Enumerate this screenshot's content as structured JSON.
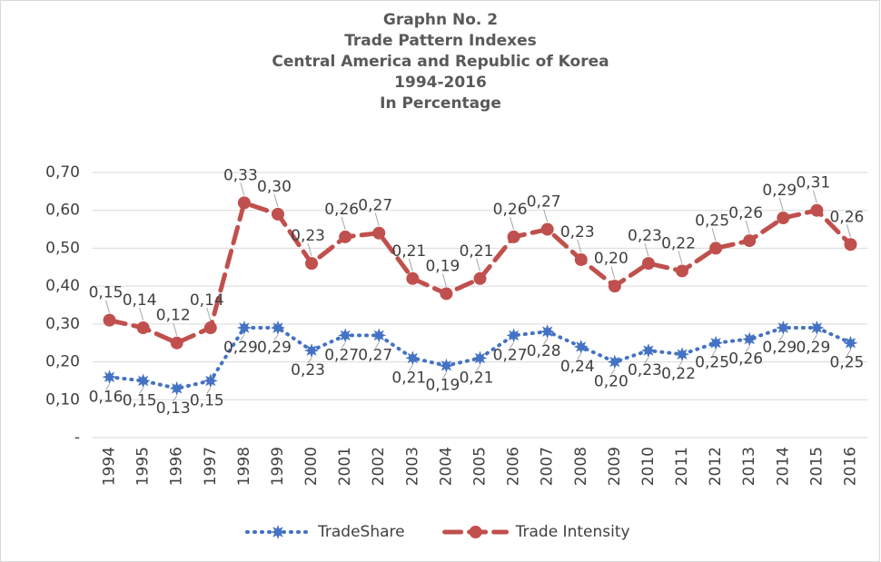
{
  "chart_data": {
    "type": "line",
    "stacked": true,
    "title": [
      "Graphn No. 2",
      "Trade Pattern Indexes",
      "Central America and Republic of Korea",
      "1994-2016",
      "In Percentage"
    ],
    "categories": [
      "1994",
      "1995",
      "1996",
      "1997",
      "1998",
      "1999",
      "2000",
      "2001",
      "2002",
      "2003",
      "2004",
      "2005",
      "2006",
      "2007",
      "2008",
      "2009",
      "2010",
      "2011",
      "2012",
      "2013",
      "2014",
      "2015",
      "2016"
    ],
    "series": [
      {
        "name": "TradeShare",
        "color": "#4472c4",
        "dash": "dot",
        "marker": "star",
        "values": [
          0.16,
          0.15,
          0.13,
          0.15,
          0.29,
          0.29,
          0.23,
          0.27,
          0.27,
          0.21,
          0.19,
          0.21,
          0.27,
          0.28,
          0.24,
          0.2,
          0.23,
          0.22,
          0.25,
          0.26,
          0.29,
          0.29,
          0.25
        ],
        "value_labels": [
          "0,16",
          "0,15",
          "0,13",
          "0,15",
          "0,29",
          "0,29",
          "0,23",
          "0,27",
          "0,27",
          "0,21",
          "0,19",
          "0,21",
          "0,27",
          "0,28",
          "0,24",
          "0,20",
          "0,23",
          "0,22",
          "0,25",
          "0,26",
          "0,29",
          "0,29",
          "0,25"
        ]
      },
      {
        "name": "Trade Intensity",
        "color": "#c0504d",
        "dash": "dash",
        "marker": "circle",
        "values": [
          0.15,
          0.14,
          0.12,
          0.14,
          0.33,
          0.3,
          0.23,
          0.26,
          0.27,
          0.21,
          0.19,
          0.21,
          0.26,
          0.27,
          0.23,
          0.2,
          0.23,
          0.22,
          0.25,
          0.26,
          0.29,
          0.31,
          0.26
        ],
        "value_labels": [
          "0,15",
          "0,14",
          "0,12",
          "0,14",
          "0,33",
          "0,30",
          "0,23",
          "0,26",
          "0,27",
          "0,21",
          "0,19",
          "0,21",
          "0,26",
          "0,27",
          "0,23",
          "0,20",
          "0,23",
          "0,22",
          "0,25",
          "0,26",
          "0,29",
          "0,31",
          "0,26"
        ]
      }
    ],
    "ylim": [
      0,
      0.7
    ],
    "yticks": [
      {
        "value": 0,
        "label": "-"
      },
      {
        "value": 0.1,
        "label": "0,10"
      },
      {
        "value": 0.2,
        "label": "0,20"
      },
      {
        "value": 0.3,
        "label": "0,30"
      },
      {
        "value": 0.4,
        "label": "0,40"
      },
      {
        "value": 0.5,
        "label": "0,50"
      },
      {
        "value": 0.6,
        "label": "0,60"
      },
      {
        "value": 0.7,
        "label": "0,70"
      }
    ],
    "grid": true,
    "legend": "bottom"
  }
}
